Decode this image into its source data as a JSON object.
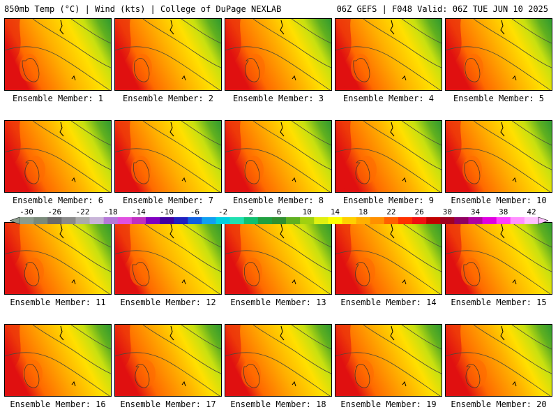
{
  "header": {
    "left": "850mb Temp (°C) | Wind (kts) | College of DuPage NEXLAB",
    "right": "06Z GEFS | F048 Valid: 06Z TUE JUN 10 2025"
  },
  "panels": [
    {
      "label": "Ensemble Member: 1"
    },
    {
      "label": "Ensemble Member: 2"
    },
    {
      "label": "Ensemble Member: 3"
    },
    {
      "label": "Ensemble Member: 4"
    },
    {
      "label": "Ensemble Member: 5"
    },
    {
      "label": "Ensemble Member: 6"
    },
    {
      "label": "Ensemble Member: 7"
    },
    {
      "label": "Ensemble Member: 8"
    },
    {
      "label": "Ensemble Member: 9"
    },
    {
      "label": "Ensemble Member: 10"
    },
    {
      "label": "Ensemble Member: 11"
    },
    {
      "label": "Ensemble Member: 12"
    },
    {
      "label": "Ensemble Member: 13"
    },
    {
      "label": "Ensemble Member: 14"
    },
    {
      "label": "Ensemble Member: 15"
    },
    {
      "label": "Ensemble Member: 16"
    },
    {
      "label": "Ensemble Member: 17"
    },
    {
      "label": "Ensemble Member: 18"
    },
    {
      "label": "Ensemble Member: 19"
    },
    {
      "label": "Ensemble Member: 20"
    }
  ],
  "colorbar": {
    "ticks": [
      "-30",
      "-26",
      "-22",
      "-18",
      "-14",
      "-10",
      "-6",
      "-2",
      "2",
      "6",
      "10",
      "14",
      "18",
      "22",
      "26",
      "30",
      "34",
      "38",
      "42"
    ],
    "colors": [
      "#8c9c8c",
      "#7a8a7a",
      "#6a6a6a",
      "#8a8a8a",
      "#aaaaaa",
      "#c8b4d8",
      "#b478d8",
      "#e050e0",
      "#c030c0",
      "#8000c0",
      "#4000a0",
      "#2020c0",
      "#1060e0",
      "#10a0f0",
      "#00d0e0",
      "#20e0b0",
      "#10c070",
      "#20a040",
      "#309030",
      "#60b020",
      "#a0d010",
      "#e0f010",
      "#ffff00",
      "#ffd000",
      "#ffb000",
      "#ff9000",
      "#ff6000",
      "#ff3000",
      "#f01010",
      "#c00000",
      "#a00020",
      "#900060",
      "#b000a0",
      "#e000e0",
      "#ff40ff",
      "#ff90ff",
      "#ffc0ff"
    ]
  },
  "map_colors": {
    "hot": "#e01010",
    "warm": "#ff6a00",
    "mild": "#ffb000",
    "yellow": "#ffe000",
    "lime": "#c8e010",
    "green": "#60b020",
    "dark_green": "#2e9a30"
  }
}
